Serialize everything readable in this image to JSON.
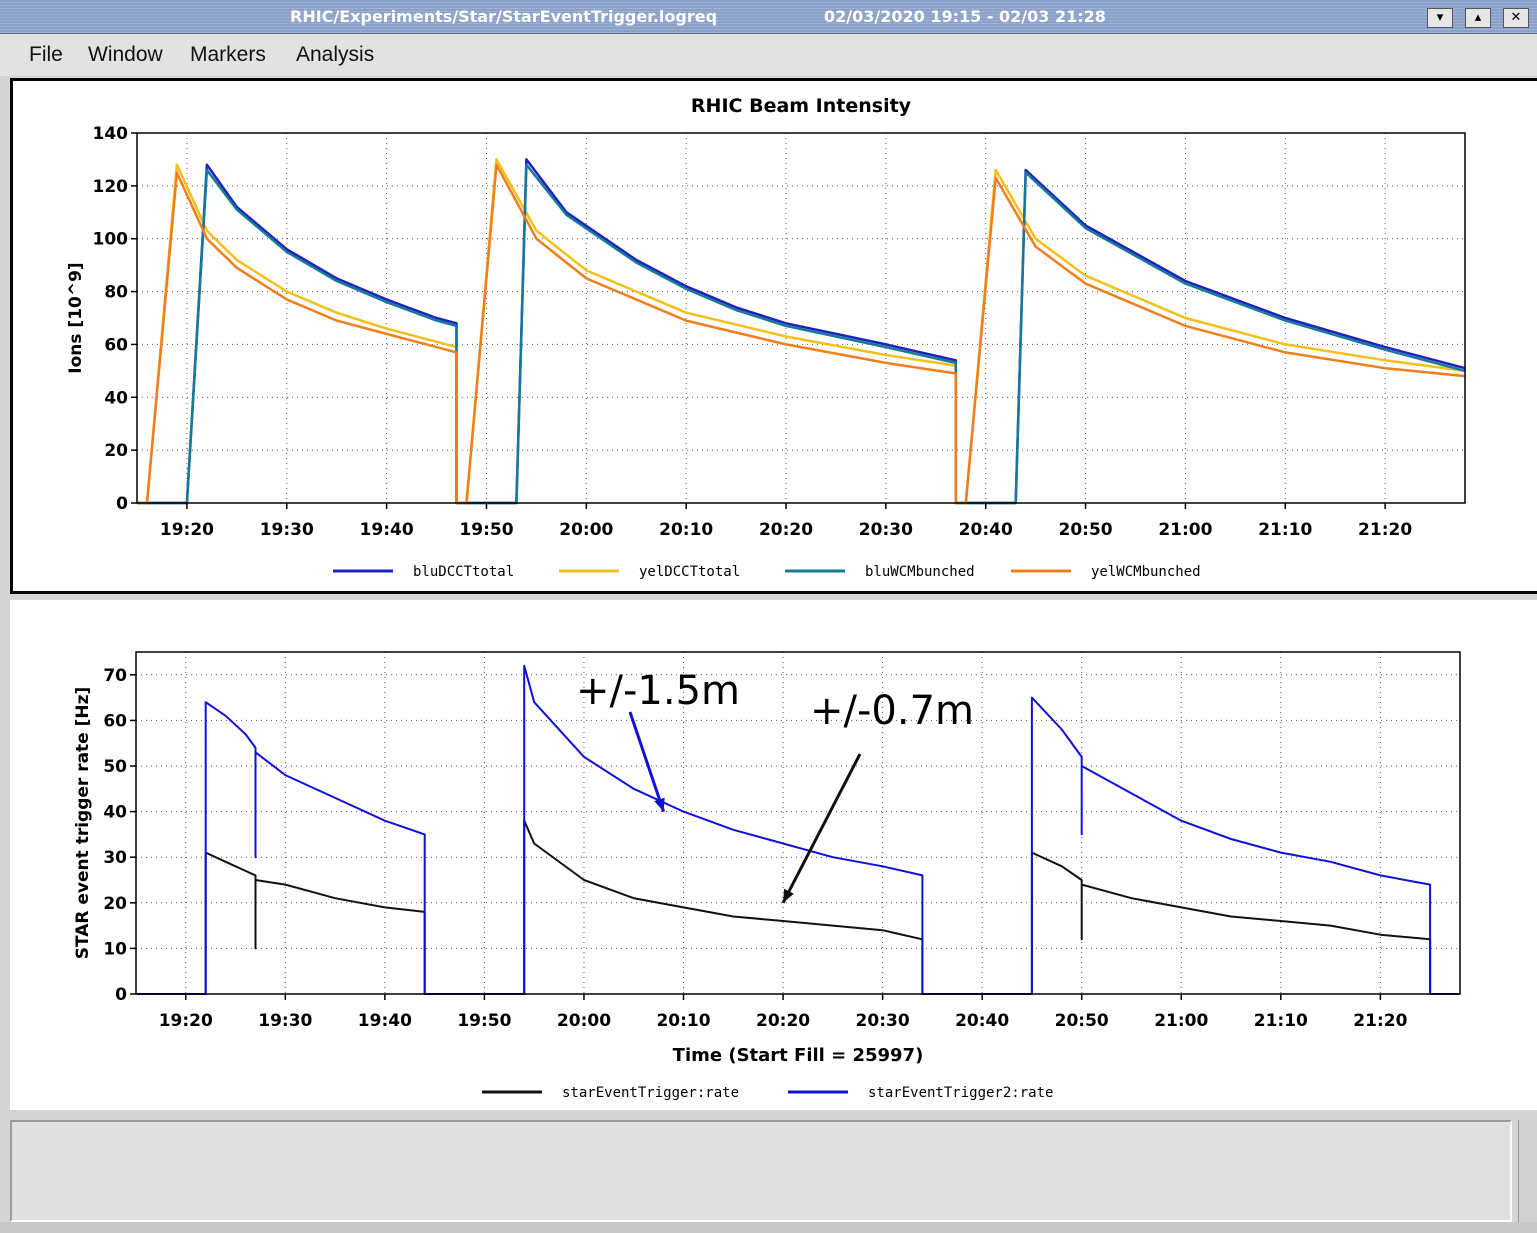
{
  "window": {
    "path": "RHIC/Experiments/Star/StarEventTrigger.logreq",
    "range": "02/03/2020 19:15 - 02/03 21:28",
    "buttons": [
      "▾",
      "▴",
      "✕"
    ]
  },
  "menu": {
    "items": [
      "File",
      "Window",
      "Markers",
      "Analysis"
    ]
  },
  "colors": {
    "bluDCCTtotal": "#1f1fbf",
    "yelDCCTtotal": "#f2c018",
    "bluWCMbunched": "#157a99",
    "yelWCMbunched": "#f07e1a",
    "starEventTrigger:rate": "#111111",
    "starEventTrigger2:rate": "#1010d8"
  },
  "chart_data": [
    {
      "type": "line",
      "title": "RHIC Beam Intensity",
      "xlabel": "",
      "ylabel": "Ions [10^9]",
      "xlim": [
        "19:15",
        "21:28"
      ],
      "ylim": [
        0,
        140
      ],
      "yticks": [
        0,
        20,
        40,
        60,
        80,
        100,
        120,
        140
      ],
      "xticks": [
        "19:20",
        "19:30",
        "19:40",
        "19:50",
        "20:00",
        "20:10",
        "20:20",
        "20:30",
        "20:40",
        "20:50",
        "21:00",
        "21:10",
        "21:20"
      ],
      "grid": true,
      "legend_position": "bottom",
      "series": [
        {
          "name": "bluDCCTtotal",
          "points": [
            [
              "19:15",
              0
            ],
            [
              "19:17",
              0
            ],
            [
              "19:20",
              0
            ],
            [
              "19:22",
              128
            ],
            [
              "19:25",
              112
            ],
            [
              "19:30",
              96
            ],
            [
              "19:35",
              85
            ],
            [
              "19:40",
              77
            ],
            [
              "19:45",
              70
            ],
            [
              "19:47",
              68
            ],
            [
              "19:47",
              0
            ],
            [
              "19:50",
              0
            ],
            [
              "19:53",
              0
            ],
            [
              "19:54",
              130
            ],
            [
              "19:58",
              110
            ],
            [
              "20:05",
              92
            ],
            [
              "20:10",
              82
            ],
            [
              "20:15",
              74
            ],
            [
              "20:20",
              68
            ],
            [
              "20:30",
              60
            ],
            [
              "20:37",
              54
            ],
            [
              "20:37",
              0
            ],
            [
              "20:40",
              0
            ],
            [
              "20:43",
              0
            ],
            [
              "20:44",
              126
            ],
            [
              "20:50",
              105
            ],
            [
              "21:00",
              84
            ],
            [
              "21:10",
              70
            ],
            [
              "21:20",
              59
            ],
            [
              "21:28",
              51
            ]
          ]
        },
        {
          "name": "yelDCCTtotal",
          "points": [
            [
              "19:15",
              0
            ],
            [
              "19:16",
              0
            ],
            [
              "19:19",
              128
            ],
            [
              "19:22",
              103
            ],
            [
              "19:25",
              92
            ],
            [
              "19:30",
              80
            ],
            [
              "19:35",
              72
            ],
            [
              "19:40",
              66
            ],
            [
              "19:45",
              61
            ],
            [
              "19:47",
              59
            ],
            [
              "19:47",
              0
            ],
            [
              "19:48",
              0
            ],
            [
              "19:51",
              130
            ],
            [
              "19:55",
              103
            ],
            [
              "20:00",
              88
            ],
            [
              "20:10",
              72
            ],
            [
              "20:20",
              63
            ],
            [
              "20:30",
              56
            ],
            [
              "20:37",
              52
            ],
            [
              "20:37",
              0
            ],
            [
              "20:38",
              0
            ],
            [
              "20:41",
              126
            ],
            [
              "20:45",
              100
            ],
            [
              "20:50",
              86
            ],
            [
              "21:00",
              70
            ],
            [
              "21:10",
              60
            ],
            [
              "21:20",
              54
            ],
            [
              "21:28",
              50
            ]
          ]
        },
        {
          "name": "bluWCMbunched",
          "points": [
            [
              "19:15",
              0
            ],
            [
              "19:17",
              0
            ],
            [
              "19:20",
              0
            ],
            [
              "19:22",
              126
            ],
            [
              "19:25",
              111
            ],
            [
              "19:30",
              95
            ],
            [
              "19:35",
              84
            ],
            [
              "19:40",
              76
            ],
            [
              "19:45",
              69
            ],
            [
              "19:47",
              67
            ],
            [
              "19:47",
              0
            ],
            [
              "19:50",
              0
            ],
            [
              "19:53",
              0
            ],
            [
              "19:54",
              128
            ],
            [
              "19:58",
              109
            ],
            [
              "20:05",
              91
            ],
            [
              "20:10",
              81
            ],
            [
              "20:15",
              73
            ],
            [
              "20:20",
              67
            ],
            [
              "20:30",
              59
            ],
            [
              "20:37",
              53
            ],
            [
              "20:37",
              0
            ],
            [
              "20:40",
              0
            ],
            [
              "20:43",
              0
            ],
            [
              "20:44",
              125
            ],
            [
              "20:50",
              104
            ],
            [
              "21:00",
              83
            ],
            [
              "21:10",
              69
            ],
            [
              "21:20",
              58
            ],
            [
              "21:28",
              50
            ]
          ]
        },
        {
          "name": "yelWCMbunched",
          "points": [
            [
              "19:15",
              0
            ],
            [
              "19:16",
              0
            ],
            [
              "19:19",
              125
            ],
            [
              "19:22",
              100
            ],
            [
              "19:25",
              89
            ],
            [
              "19:30",
              77
            ],
            [
              "19:35",
              69
            ],
            [
              "19:40",
              64
            ],
            [
              "19:45",
              59
            ],
            [
              "19:47",
              57
            ],
            [
              "19:47",
              0
            ],
            [
              "19:48",
              0
            ],
            [
              "19:51",
              128
            ],
            [
              "19:55",
              100
            ],
            [
              "20:00",
              85
            ],
            [
              "20:10",
              69
            ],
            [
              "20:20",
              60
            ],
            [
              "20:30",
              53
            ],
            [
              "20:37",
              49
            ],
            [
              "20:37",
              0
            ],
            [
              "20:38",
              0
            ],
            [
              "20:41",
              123
            ],
            [
              "20:45",
              97
            ],
            [
              "20:50",
              83
            ],
            [
              "21:00",
              67
            ],
            [
              "21:10",
              57
            ],
            [
              "21:20",
              51
            ],
            [
              "21:28",
              48
            ]
          ]
        }
      ]
    },
    {
      "type": "line",
      "title": "",
      "xlabel": "Time (Start Fill = 25997)",
      "ylabel": "STAR event trigger rate [Hz]",
      "xlim": [
        "19:15",
        "21:28"
      ],
      "ylim": [
        0,
        75
      ],
      "yticks": [
        0,
        10,
        20,
        30,
        40,
        50,
        60,
        70
      ],
      "xticks": [
        "19:20",
        "19:30",
        "19:40",
        "19:50",
        "20:00",
        "20:10",
        "20:20",
        "20:30",
        "20:40",
        "20:50",
        "21:00",
        "21:10",
        "21:20"
      ],
      "grid": true,
      "legend_position": "bottom",
      "series": [
        {
          "name": "starEventTrigger:rate",
          "points": [
            [
              "19:15",
              0
            ],
            [
              "19:22",
              0
            ],
            [
              "19:22",
              31
            ],
            [
              "19:24",
              29
            ],
            [
              "19:26",
              27
            ],
            [
              "19:27",
              26
            ],
            [
              "19:27",
              10
            ],
            [
              "19:27",
              25
            ],
            [
              "19:30",
              24
            ],
            [
              "19:35",
              21
            ],
            [
              "19:40",
              19
            ],
            [
              "19:44",
              18
            ],
            [
              "19:44",
              0
            ],
            [
              "19:54",
              0
            ],
            [
              "19:54",
              38
            ],
            [
              "19:55",
              33
            ],
            [
              "20:00",
              25
            ],
            [
              "20:05",
              21
            ],
            [
              "20:10",
              19
            ],
            [
              "20:15",
              17
            ],
            [
              "20:20",
              16
            ],
            [
              "20:25",
              15
            ],
            [
              "20:30",
              14
            ],
            [
              "20:34",
              12
            ],
            [
              "20:34",
              0
            ],
            [
              "20:45",
              0
            ],
            [
              "20:45",
              31
            ],
            [
              "20:48",
              28
            ],
            [
              "20:50",
              25
            ],
            [
              "20:50",
              12
            ],
            [
              "20:50",
              24
            ],
            [
              "20:55",
              21
            ],
            [
              "21:00",
              19
            ],
            [
              "21:05",
              17
            ],
            [
              "21:10",
              16
            ],
            [
              "21:15",
              15
            ],
            [
              "21:20",
              13
            ],
            [
              "21:25",
              12
            ],
            [
              "21:25",
              0
            ],
            [
              "21:28",
              0
            ]
          ]
        },
        {
          "name": "starEventTrigger2:rate",
          "points": [
            [
              "19:15",
              0
            ],
            [
              "19:22",
              0
            ],
            [
              "19:22",
              64
            ],
            [
              "19:24",
              61
            ],
            [
              "19:26",
              57
            ],
            [
              "19:27",
              54
            ],
            [
              "19:27",
              30
            ],
            [
              "19:27",
              53
            ],
            [
              "19:30",
              48
            ],
            [
              "19:35",
              43
            ],
            [
              "19:40",
              38
            ],
            [
              "19:44",
              35
            ],
            [
              "19:44",
              0
            ],
            [
              "19:54",
              0
            ],
            [
              "19:54",
              72
            ],
            [
              "19:55",
              64
            ],
            [
              "20:00",
              52
            ],
            [
              "20:05",
              45
            ],
            [
              "20:10",
              40
            ],
            [
              "20:15",
              36
            ],
            [
              "20:20",
              33
            ],
            [
              "20:25",
              30
            ],
            [
              "20:30",
              28
            ],
            [
              "20:34",
              26
            ],
            [
              "20:34",
              0
            ],
            [
              "20:45",
              0
            ],
            [
              "20:45",
              65
            ],
            [
              "20:48",
              58
            ],
            [
              "20:50",
              52
            ],
            [
              "20:50",
              35
            ],
            [
              "20:50",
              50
            ],
            [
              "20:55",
              44
            ],
            [
              "21:00",
              38
            ],
            [
              "21:05",
              34
            ],
            [
              "21:10",
              31
            ],
            [
              "21:15",
              29
            ],
            [
              "21:20",
              26
            ],
            [
              "21:25",
              24
            ],
            [
              "21:25",
              0
            ],
            [
              "21:28",
              0
            ]
          ]
        }
      ],
      "annotations": [
        {
          "text": "+/-1.5m",
          "target_series": "starEventTrigger2:rate",
          "target": [
            "20:08",
            40
          ]
        },
        {
          "text": "+/-0.7m",
          "target_series": "starEventTrigger:rate",
          "target": [
            "20:20",
            20
          ]
        }
      ]
    }
  ]
}
